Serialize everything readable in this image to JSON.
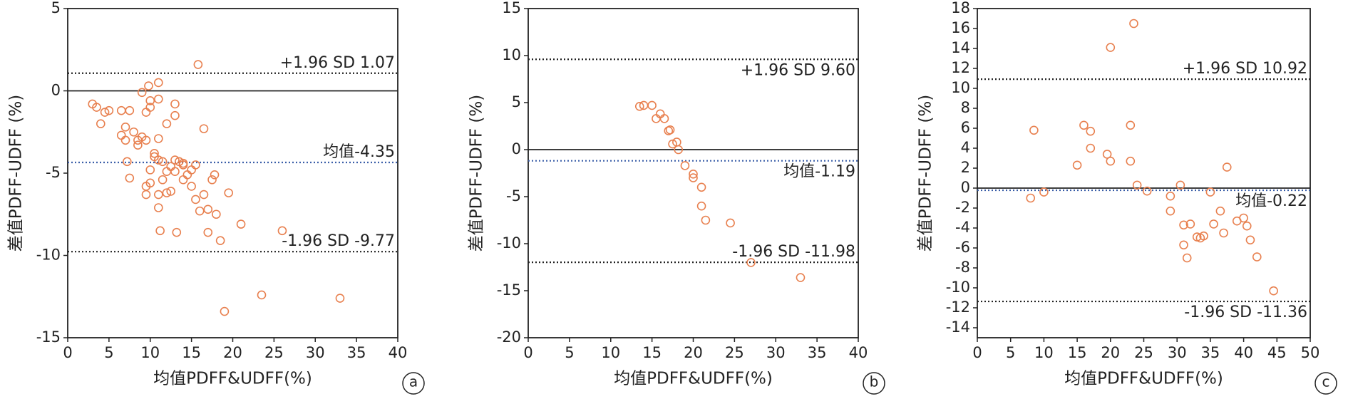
{
  "chart_data": [
    {
      "type": "scatter",
      "panel_label": "a",
      "x_label": "均值PDFF&UDFF(%)",
      "y_label": "差值PDFF-UDFF (%)",
      "color": "#e8804f",
      "zero_line": true,
      "xlim": [
        0,
        40
      ],
      "ylim": [
        -15,
        5
      ],
      "xticks": [
        0,
        5,
        10,
        15,
        20,
        25,
        30,
        35,
        40
      ],
      "yticks": [
        -15,
        -10,
        -5,
        0,
        5
      ],
      "reference_lines": [
        {
          "value": 1.07,
          "label": "+1.96 SD 1.07",
          "color": "#222222"
        },
        {
          "value": -4.35,
          "label": "均值-4.35",
          "color": "#3a5ea8"
        },
        {
          "value": -9.77,
          "label": "-1.96 SD -9.77",
          "color": "#222222"
        }
      ],
      "x": [
        3,
        3.5,
        4,
        4.5,
        5,
        6.5,
        6.5,
        7,
        7,
        7.2,
        7.5,
        7.5,
        8,
        8.5,
        8.5,
        9,
        9,
        9.5,
        9.5,
        9.5,
        9.5,
        10,
        10,
        10,
        10,
        10.5,
        10.5,
        11,
        11,
        11,
        11,
        11,
        11,
        11.2,
        11.5,
        11.5,
        12,
        12,
        12,
        12.5,
        12.5,
        13,
        13,
        13,
        13,
        13.2,
        13.5,
        14,
        14,
        14,
        14.5,
        15,
        15,
        15.5,
        15.5,
        15.8,
        16,
        16.5,
        16.5,
        17,
        17,
        17.5,
        17.8,
        18,
        18.5,
        19,
        19.5,
        21,
        23.5,
        26,
        33,
        9.8
      ],
      "values": [
        -0.8,
        -1,
        -2,
        -1.3,
        -1.2,
        -2.7,
        -1.2,
        -2.2,
        -3,
        -4.3,
        -5.3,
        -1.2,
        -2.5,
        -3.3,
        -3,
        -0.1,
        -2.8,
        -1.3,
        -3,
        -6.3,
        -5.8,
        -1,
        -0.6,
        -4.8,
        -5.6,
        -4,
        -3.8,
        -2.9,
        -4.2,
        -0.5,
        0.5,
        -6.3,
        -7.1,
        -8.5,
        -4.3,
        -5.4,
        -4.9,
        -6.2,
        -2,
        -4.6,
        -6.1,
        -4.2,
        -1.5,
        -0.8,
        -4.9,
        -8.6,
        -4.3,
        -4.4,
        -5.4,
        -4.5,
        -5.1,
        -4.8,
        -5.8,
        -4.5,
        -6.6,
        1.6,
        -7.3,
        -2.3,
        -6.3,
        -7.2,
        -8.6,
        -5.4,
        -5.1,
        -7.5,
        -9.1,
        -13.4,
        -6.2,
        -8.1,
        -12.4,
        -8.5,
        -12.6,
        0.3
      ]
    },
    {
      "type": "scatter",
      "panel_label": "b",
      "x_label": "均值PDFF&UDFF(%)",
      "y_label": "差值PDFF-UDFF (%)",
      "color": "#e8804f",
      "zero_line": true,
      "xlim": [
        0,
        40
      ],
      "ylim": [
        -20,
        15
      ],
      "xticks": [
        0,
        5,
        10,
        15,
        20,
        25,
        30,
        35,
        40
      ],
      "yticks": [
        -20,
        -15,
        -10,
        -5,
        0,
        5,
        10,
        15
      ],
      "reference_lines": [
        {
          "value": 9.6,
          "label": "+1.96 SD 9.60",
          "color": "#222222"
        },
        {
          "value": -1.19,
          "label": "均值-1.19",
          "color": "#3a5ea8"
        },
        {
          "value": -11.98,
          "label": "-1.96 SD -11.98",
          "color": "#222222"
        }
      ],
      "x": [
        13.5,
        14,
        15,
        15.5,
        16,
        16.5,
        17,
        17.2,
        17.5,
        18,
        18.2,
        19,
        20,
        20,
        21,
        21,
        21.5,
        24.5,
        27,
        33
      ],
      "values": [
        4.6,
        4.7,
        4.7,
        3.3,
        3.8,
        3.3,
        2,
        2.1,
        0.6,
        0.8,
        0,
        -1.7,
        -3,
        -2.6,
        -4,
        -6,
        -7.5,
        -7.8,
        -12,
        -13.6
      ]
    },
    {
      "type": "scatter",
      "panel_label": "c",
      "x_label": "均值PDFF&UDFF(%)",
      "y_label": "差值PDFF-UDFF (%)",
      "color": "#e8804f",
      "zero_line": true,
      "xlim": [
        0,
        50
      ],
      "ylim": [
        -15,
        18
      ],
      "xticks": [
        0,
        5,
        10,
        15,
        20,
        25,
        30,
        35,
        40,
        45,
        50
      ],
      "yticks": [
        -14,
        -12,
        -10,
        -8,
        -6,
        -4,
        -2,
        0,
        2,
        4,
        6,
        8,
        10,
        12,
        14,
        16,
        18
      ],
      "reference_lines": [
        {
          "value": 10.92,
          "label": "+1.96 SD 10.92",
          "color": "#222222"
        },
        {
          "value": -0.22,
          "label": "均值-0.22",
          "color": "#3a5ea8"
        },
        {
          "value": -11.36,
          "label": "-1.96 SD -11.36",
          "color": "#222222"
        }
      ],
      "x": [
        8,
        8.5,
        10,
        15,
        16,
        17,
        17,
        19.5,
        20,
        20,
        23,
        23,
        23.5,
        24,
        25.5,
        29,
        29,
        30.5,
        31,
        31,
        31.5,
        32,
        33,
        33.5,
        34,
        35,
        35.5,
        36.5,
        37,
        37.5,
        39,
        40,
        40.5,
        41,
        42,
        44.5
      ],
      "values": [
        -1,
        5.8,
        -0.4,
        2.3,
        6.3,
        4,
        5.7,
        3.4,
        14.1,
        2.7,
        2.7,
        6.3,
        16.5,
        0.3,
        -0.3,
        -0.8,
        -2.3,
        0.3,
        -3.7,
        -5.7,
        -7,
        -3.6,
        -4.9,
        -5,
        -4.8,
        -0.4,
        -3.6,
        -2.3,
        -4.5,
        2.1,
        -3.3,
        -3,
        -3.8,
        -5.2,
        -6.9,
        -10.3
      ]
    }
  ]
}
